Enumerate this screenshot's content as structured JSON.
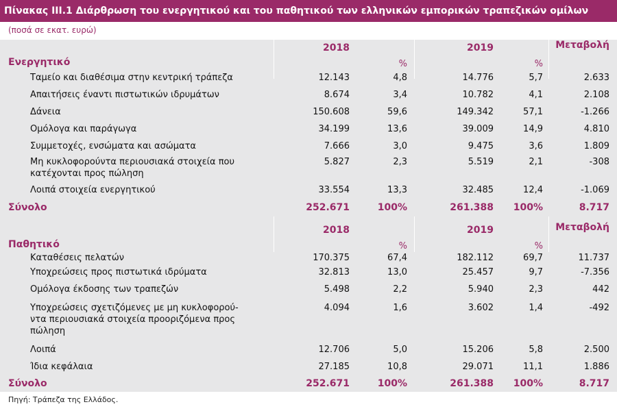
{
  "title": "Πίνακας ΙΙΙ.1 Διάρθρωση του ενεργητικού και του παθητικού των ελληνικών εμπορικών τραπεζικών ομίλων",
  "units": "(ποσά σε εκατ. ευρώ)",
  "source": "Πηγή: Τράπεζα της Ελλάδος.",
  "headers": {
    "y2018": "2018",
    "y2019": "2019",
    "pct": "%",
    "change": "Μεταβολή"
  },
  "assets": {
    "label": "Ενεργητικό",
    "rows": [
      {
        "label": [
          "Ταμείο και διαθέσιμα στην κεντρική τράπεζα"
        ],
        "v2018": "12.143",
        "p2018": "4,8",
        "v2019": "14.776",
        "p2019": "5,7",
        "change": "2.633"
      },
      {
        "label": [
          "Απαιτήσεις έναντι πιστωτικών ιδρυμάτων"
        ],
        "v2018": "8.674",
        "p2018": "3,4",
        "v2019": "10.782",
        "p2019": "4,1",
        "change": "2.108"
      },
      {
        "label": [
          "Δάνεια"
        ],
        "v2018": "150.608",
        "p2018": "59,6",
        "v2019": "149.342",
        "p2019": "57,1",
        "change": "-1.266"
      },
      {
        "label": [
          "Ομόλογα και παράγωγα"
        ],
        "v2018": "34.199",
        "p2018": "13,6",
        "v2019": "39.009",
        "p2019": "14,9",
        "change": "4.810"
      },
      {
        "label": [
          "Συμμετοχές, ενσώματα και ασώματα"
        ],
        "v2018": "7.666",
        "p2018": "3,0",
        "v2019": "9.475",
        "p2019": "3,6",
        "change": "1.809"
      },
      {
        "label": [
          "Μη κυκλοφορούντα περιουσιακά στοιχεία που",
          "κατέχονται προς πώληση"
        ],
        "v2018": "5.827",
        "p2018": "2,3",
        "v2019": "5.519",
        "p2019": "2,1",
        "change": "-308"
      },
      {
        "label": [
          "Λοιπά στοιχεία ενεργητικού"
        ],
        "v2018": "33.554",
        "p2018": "13,3",
        "v2019": "32.485",
        "p2019": "12,4",
        "change": "-1.069"
      }
    ],
    "total": {
      "label": "Σύνολο",
      "v2018": "252.671",
      "p2018": "100%",
      "v2019": "261.388",
      "p2019": "100%",
      "change": "8.717"
    }
  },
  "liabilities": {
    "label": "Παθητικό",
    "rows": [
      {
        "label": [
          "Καταθέσεις πελατών"
        ],
        "v2018": "170.375",
        "p2018": "67,4",
        "v2019": "182.112",
        "p2019": "69,7",
        "change": "11.737"
      },
      {
        "label": [
          "Υποχρεώσεις προς πιστωτικά ιδρύματα"
        ],
        "v2018": "32.813",
        "p2018": "13,0",
        "v2019": "25.457",
        "p2019": "9,7",
        "change": "-7.356"
      },
      {
        "label": [
          "Ομόλογα έκδοσης των τραπεζών"
        ],
        "v2018": "5.498",
        "p2018": "2,2",
        "v2019": "5.940",
        "p2019": "2,3",
        "change": "442"
      },
      {
        "label": [
          "Υποχρεώσεις σχετιζόμενες με μη κυκλοφορού-",
          "ντα περιουσιακά στοιχεία προοριζόμενα προς",
          "πώληση"
        ],
        "v2018": "4.094",
        "p2018": "1,6",
        "v2019": "3.602",
        "p2019": "1,4",
        "change": "-492"
      },
      {
        "label": [
          "Λοιπά"
        ],
        "v2018": "12.706",
        "p2018": "5,0",
        "v2019": "15.206",
        "p2019": "5,8",
        "change": "2.500"
      },
      {
        "label": [
          "Ίδια κεφάλαια"
        ],
        "v2018": "27.185",
        "p2018": "10,8",
        "v2019": "29.071",
        "p2019": "11,1",
        "change": "1.886"
      }
    ],
    "total": {
      "label": "Σύνολο",
      "v2018": "252.671",
      "p2018": "100%",
      "v2019": "261.388",
      "p2019": "100%",
      "change": "8.717"
    }
  }
}
